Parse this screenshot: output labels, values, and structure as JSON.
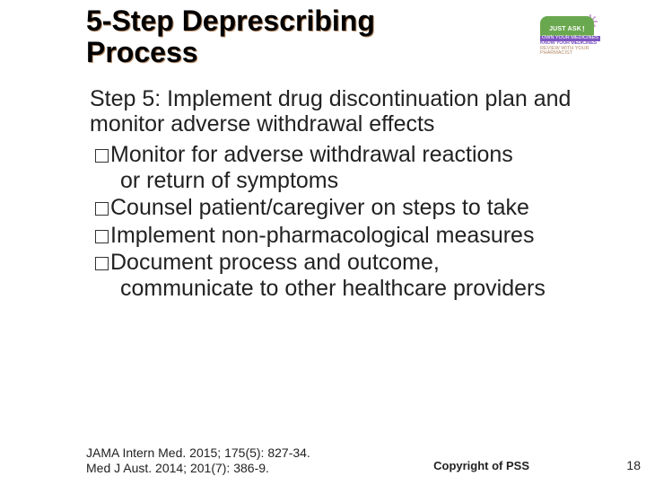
{
  "title": "5-Step Deprescribing Process",
  "logo": {
    "bubble": "JUST ASK",
    "line1": "OWN YOUR MEDICINES",
    "line2": "KNOW YOUR MEDICINES",
    "line3": "REVIEW WITH YOUR PHARMACIST"
  },
  "subtitle": "Step 5: Implement drug discontinuation plan and monitor adverse withdrawal effects",
  "bullets": [
    {
      "first": "Monitor for adverse withdrawal reactions",
      "cont": "or return of symptoms"
    },
    {
      "first": "Counsel patient/caregiver on steps to take",
      "cont": ""
    },
    {
      "first": "Implement non-pharmacological measures",
      "cont": ""
    },
    {
      "first": "Document process and outcome,",
      "cont": "communicate to other healthcare providers"
    }
  ],
  "refs": [
    "JAMA Intern Med. 2015; 175(5): 827-34.",
    "Med J Aust. 2014; 201(7): 386-9."
  ],
  "copyright": "Copyright of PSS",
  "page": "18",
  "colors": {
    "title_shadow": "#b58a66",
    "logo_green": "#6aa84f",
    "logo_purple": "#7e57c2",
    "logo_tan": "#b58a66",
    "burst": "#cfa8dc"
  },
  "fonts": {
    "title_size": 32,
    "body_size": 25,
    "ref_size": 14,
    "copy_size": 13,
    "page_size": 14
  }
}
